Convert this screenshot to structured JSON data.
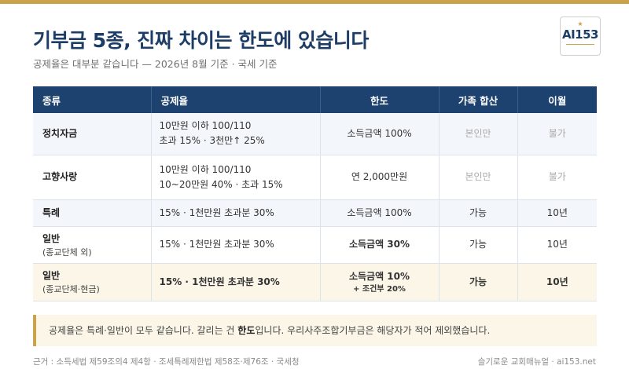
{
  "header": {
    "title": "기부금 5종, 진짜 차이는 한도에 있습니다",
    "subtitle": "공제율은 대부분 같습니다 — 2026년 8월 기준 · 국세 기준"
  },
  "logo": {
    "text": "AI153"
  },
  "table": {
    "columns": [
      "종류",
      "공제율",
      "한도",
      "가족 합산",
      "이월"
    ],
    "rows": [
      {
        "kind": "정치자금",
        "kind_sub": "",
        "rate_line1": "10만원 이하 100/110",
        "rate_line2": "초과 15% · 3천만↑ 25%",
        "limit": "소득금액 100%",
        "limit_note": "",
        "family": "본인만",
        "carry": "불가"
      },
      {
        "kind": "고향사랑",
        "kind_sub": "",
        "rate_line1": "10만원 이하 100/110",
        "rate_line2": "10~20만원 40% · 초과 15%",
        "limit": "연 2,000만원",
        "limit_note": "",
        "family": "본인만",
        "carry": "불가"
      },
      {
        "kind": "특례",
        "kind_sub": "",
        "rate_line1": "15% · 1천만원 초과분 30%",
        "rate_line2": "",
        "limit": "소득금액 100%",
        "limit_note": "",
        "family": "가능",
        "carry": "10년"
      },
      {
        "kind": "일반",
        "kind_sub": "(종교단체 외)",
        "rate_line1": "15% · 1천만원 초과분 30%",
        "rate_line2": "",
        "limit": "소득금액 30%",
        "limit_note": "",
        "family": "가능",
        "carry": "10년"
      },
      {
        "kind": "일반",
        "kind_sub": "(종교단체·현금)",
        "rate_line1": "15% · 1천만원 초과분 30%",
        "rate_line2": "",
        "limit": "소득금액 10%",
        "limit_note": "+ 조건부 20%",
        "family": "가능",
        "carry": "10년"
      }
    ]
  },
  "callout": {
    "text_before": "공제율은 특례·일반이 모두 같습니다. 갈리는 건 ",
    "emphasis": "한도",
    "text_after": "입니다. 우리사주조합기부금은 해당자가 적어 제외했습니다."
  },
  "footer": {
    "source": "근거 : 소득세법 제59조의4 제4항 · 조세특례제한법 제58조·제76조 · 국세청",
    "brand": "슬기로운 교회매뉴얼 · ai153.net"
  },
  "colors": {
    "accent_gold": "#c9a24a",
    "header_navy": "#1e4270",
    "title_navy": "#1e3d66"
  }
}
